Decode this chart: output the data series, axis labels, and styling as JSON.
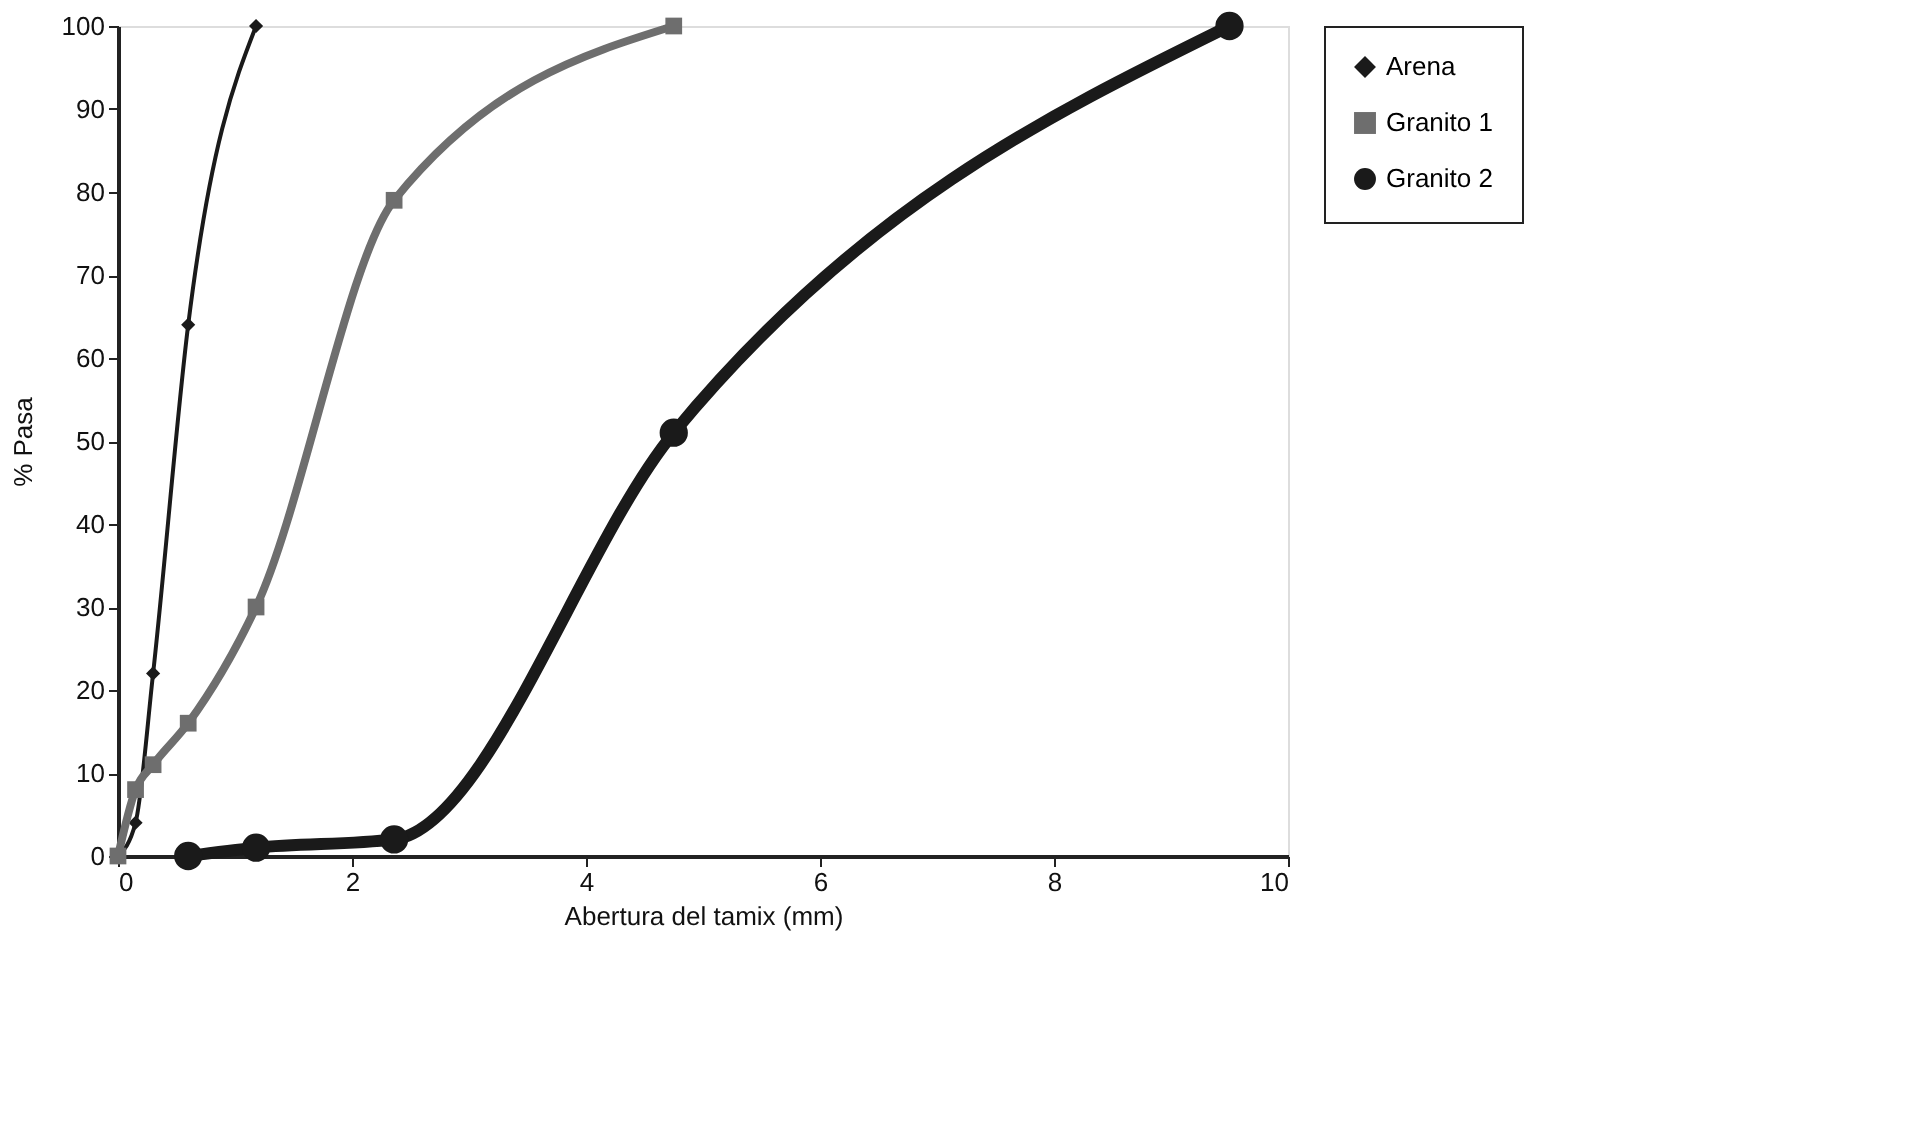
{
  "chart_data": {
    "type": "line",
    "xlabel": "Abertura del tamix (mm)",
    "ylabel": "% Pasa",
    "series": [
      {
        "name": "Arena",
        "color": "#1a1a1a",
        "marker": "diamond",
        "x": [
          0,
          0.15,
          0.3,
          0.6,
          1.18
        ],
        "values": [
          0,
          4,
          22,
          64,
          100
        ]
      },
      {
        "name": "Granito 1",
        "color": "#6e6e6e",
        "marker": "square",
        "x": [
          0,
          0.15,
          0.3,
          0.6,
          1.18,
          2.36,
          4.75
        ],
        "values": [
          0,
          8,
          11,
          16,
          30,
          79,
          100
        ]
      },
      {
        "name": "Granito 2",
        "color": "#1a1a1a",
        "marker": "circle",
        "x": [
          0.6,
          1.18,
          2.36,
          4.75,
          9.5
        ],
        "values": [
          0,
          1,
          2,
          51,
          100
        ]
      }
    ],
    "xlim": [
      0,
      10
    ],
    "xticks": [
      0,
      2,
      4,
      6,
      8,
      10
    ],
    "ylim": [
      0,
      100
    ],
    "yticks": [
      0,
      10,
      20,
      30,
      40,
      50,
      60,
      70,
      80,
      90,
      100
    ],
    "grid": false,
    "legend": "right"
  }
}
